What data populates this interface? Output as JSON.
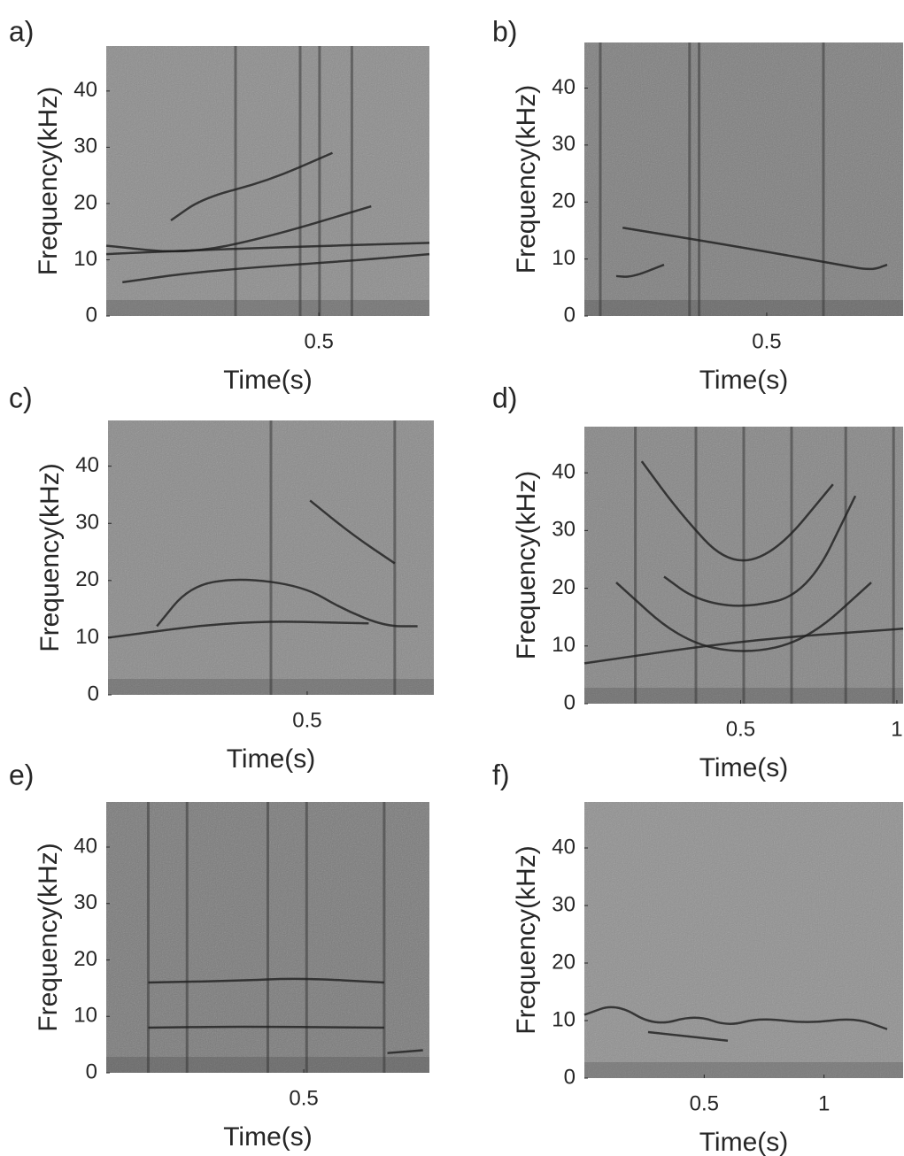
{
  "chart_data": [
    {
      "type": "spectrogram",
      "title": "a)",
      "xlabel": "Time(s)",
      "ylabel": "Frequency(kHz)",
      "xlim": [
        0,
        0.76
      ],
      "xticks": [
        0.5
      ],
      "ylim": [
        0,
        48
      ],
      "yticks": [
        0,
        10,
        20,
        30,
        40
      ]
    },
    {
      "type": "spectrogram",
      "title": "b)",
      "xlabel": "Time(s)",
      "ylabel": "Frequency(kHz)",
      "xlim": [
        0,
        0.874
      ],
      "xticks": [
        0.5
      ],
      "ylim": [
        0,
        48
      ],
      "yticks": [
        0,
        10,
        20,
        30,
        40
      ]
    },
    {
      "type": "spectrogram",
      "title": "c)",
      "xlabel": "Time(s)",
      "ylabel": "Frequency(kHz)",
      "xlim": [
        0,
        0.818
      ],
      "xticks": [
        0.5
      ],
      "ylim": [
        0,
        48
      ],
      "yticks": [
        0,
        10,
        20,
        30,
        40
      ]
    },
    {
      "type": "spectrogram",
      "title": "d)",
      "xlabel": "Time(s)",
      "ylabel": "Frequency(kHz)",
      "xlim": [
        0,
        1.02
      ],
      "xticks": [
        0.5,
        1
      ],
      "ylim": [
        0,
        48
      ],
      "yticks": [
        0,
        10,
        20,
        30,
        40
      ]
    },
    {
      "type": "spectrogram",
      "title": "e)",
      "xlabel": "Time(s)",
      "ylabel": "Frequency(kHz)",
      "xlim": [
        0,
        0.818
      ],
      "xticks": [
        0.5
      ],
      "ylim": [
        0,
        48
      ],
      "yticks": [
        0,
        10,
        20,
        30,
        40
      ]
    },
    {
      "type": "spectrogram",
      "title": "f)",
      "xlabel": "Time(s)",
      "ylabel": "Frequency(kHz)",
      "xlim": [
        0,
        1.33
      ],
      "xticks": [
        0.5,
        1
      ],
      "ylim": [
        0,
        48
      ],
      "yticks": [
        0,
        10,
        20,
        30,
        40
      ]
    }
  ]
}
